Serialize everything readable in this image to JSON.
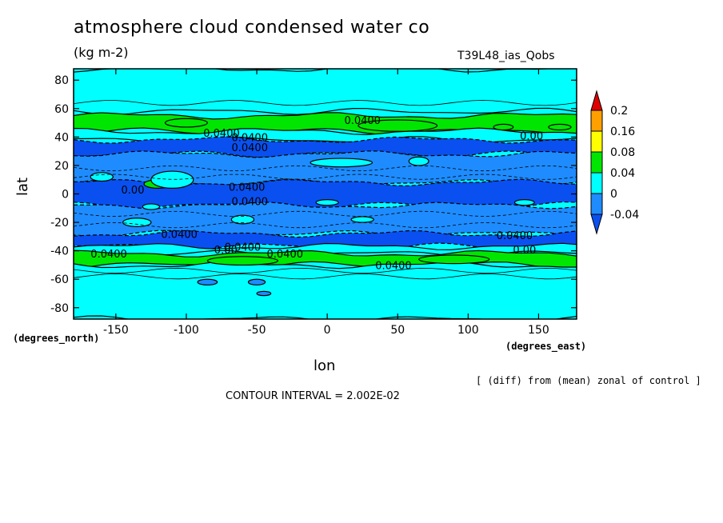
{
  "chart_data": {
    "type": "heatmap",
    "title": "atmosphere cloud condensed water co",
    "units": "(kg m-2)",
    "run_label": "T39L48_ias_Qobs",
    "xlabel": "lon",
    "ylabel": "lat",
    "x_unit_label": "(degrees_east)",
    "y_unit_label": "(degrees_north)",
    "xlim": [
      -180,
      177
    ],
    "ylim": [
      -88,
      88
    ],
    "x_ticks": [
      -150,
      -100,
      -50,
      0,
      50,
      100,
      150
    ],
    "y_ticks": [
      -80,
      -60,
      -40,
      -20,
      0,
      20,
      40,
      60,
      80
    ],
    "note": "[ (diff) from (mean) zonal of control ]",
    "contour_interval": "CONTOUR INTERVAL = 2.002E-02",
    "colorbar": {
      "levels": [
        "0.2",
        "0.16",
        "0.08",
        "0.04",
        "0",
        "-0.04"
      ],
      "colors": [
        "#e00000",
        "#ff9f00",
        "#ffff00",
        "#00e600",
        "#00ffff",
        "#1e8cff",
        "#0a50f0"
      ]
    },
    "zonal_bands": [
      {
        "lat": [
          58,
          88
        ],
        "class": "0 to 0.04",
        "color": "#00ffff"
      },
      {
        "lat": [
          44,
          55
        ],
        "class": "0.04 to 0.08",
        "color": "#00e600"
      },
      {
        "lat": [
          38,
          44
        ],
        "class": "0 to 0.04",
        "color": "#00ffff"
      },
      {
        "lat": [
          28,
          38
        ],
        "class": "below -0.04",
        "color": "#0a50f0"
      },
      {
        "lat": [
          8,
          28
        ],
        "class": "-0.04 to 0",
        "color": "#1e8cff"
      },
      {
        "lat": [
          -8,
          8
        ],
        "class": "below -0.04",
        "color": "#0a50f0"
      },
      {
        "lat": [
          -28,
          -8
        ],
        "class": "-0.04 to 0",
        "color": "#1e8cff"
      },
      {
        "lat": [
          -37,
          -28
        ],
        "class": "below -0.04",
        "color": "#0a50f0"
      },
      {
        "lat": [
          -42,
          -37
        ],
        "class": "0 to 0.04",
        "color": "#00ffff"
      },
      {
        "lat": [
          -50,
          -42
        ],
        "class": "0.04 to 0.08",
        "color": "#00e600"
      },
      {
        "lat": [
          -88,
          -50
        ],
        "class": "0 to 0.04",
        "color": "#00ffff"
      }
    ],
    "contour_labels": [
      {
        "text": "0.0400",
        "lon": 25,
        "lat": 52
      },
      {
        "text": "0.0400",
        "lon": -75,
        "lat": 43
      },
      {
        "text": "0.0400",
        "lon": -55,
        "lat": 40
      },
      {
        "text": "0.0400",
        "lon": -55,
        "lat": 33
      },
      {
        "text": "0.00",
        "lon": 145,
        "lat": 41
      },
      {
        "text": "0.0400",
        "lon": -57,
        "lat": 5
      },
      {
        "text": "0.00",
        "lon": -138,
        "lat": 3
      },
      {
        "text": "0.0400",
        "lon": -55,
        "lat": -5
      },
      {
        "text": "0.0400",
        "lon": -105,
        "lat": -28
      },
      {
        "text": "0.0400",
        "lon": 133,
        "lat": -29
      },
      {
        "text": "0.0400",
        "lon": -60,
        "lat": -37
      },
      {
        "text": "0.00",
        "lon": -72,
        "lat": -39
      },
      {
        "text": "0.00",
        "lon": 140,
        "lat": -39
      },
      {
        "text": "0.0400",
        "lon": -155,
        "lat": -42
      },
      {
        "text": "0.0400",
        "lon": -30,
        "lat": -42
      },
      {
        "text": "0.0400",
        "lon": 47,
        "lat": -50
      }
    ],
    "patches": [
      {
        "lon": 10,
        "lat": 22,
        "rlon": 22,
        "rlat": 3,
        "color": "#00ffff"
      },
      {
        "lon": 65,
        "lat": 23,
        "rlon": 7,
        "rlat": 3,
        "color": "#00ffff"
      },
      {
        "lon": -120,
        "lat": 7,
        "rlon": 10,
        "rlat": 3,
        "color": "#00e600"
      },
      {
        "lon": -110,
        "lat": 10,
        "rlon": 15,
        "rlat": 6,
        "color": "#00ffff"
      },
      {
        "lon": -160,
        "lat": 12,
        "rlon": 8,
        "rlat": 3,
        "color": "#00ffff"
      },
      {
        "lon": -125,
        "lat": -9,
        "rlon": 6,
        "rlat": 2,
        "color": "#00ffff"
      },
      {
        "lon": 0,
        "lat": -6,
        "rlon": 8,
        "rlat": 2,
        "color": "#00ffff"
      },
      {
        "lon": 140,
        "lat": -6,
        "rlon": 7,
        "rlat": 2,
        "color": "#00ffff"
      },
      {
        "lon": -135,
        "lat": -20,
        "rlon": 10,
        "rlat": 3,
        "color": "#00ffff"
      },
      {
        "lon": -60,
        "lat": -18,
        "rlon": 8,
        "rlat": 3,
        "color": "#00ffff"
      },
      {
        "lon": 25,
        "lat": -18,
        "rlon": 8,
        "rlat": 2,
        "color": "#00ffff"
      },
      {
        "lon": -85,
        "lat": -62,
        "rlon": 7,
        "rlat": 2,
        "color": "#1e8cff"
      },
      {
        "lon": -50,
        "lat": -62,
        "rlon": 6,
        "rlat": 2,
        "color": "#1e8cff"
      },
      {
        "lon": -45,
        "lat": -70,
        "rlon": 5,
        "rlat": 1.5,
        "color": "#1e8cff"
      },
      {
        "lon": 125,
        "lat": 47,
        "rlon": 7,
        "rlat": 2,
        "color": "#00e600"
      },
      {
        "lon": 165,
        "lat": 47,
        "rlon": 8,
        "rlat": 2,
        "color": "#00e600"
      },
      {
        "lon": 50,
        "lat": 48,
        "rlon": 28,
        "rlat": 4,
        "color": "#00e600"
      },
      {
        "lon": -100,
        "lat": 50,
        "rlon": 15,
        "rlat": 3,
        "color": "#00e600"
      },
      {
        "lon": -60,
        "lat": -47,
        "rlon": 25,
        "rlat": 3,
        "color": "#00e600"
      },
      {
        "lon": 90,
        "lat": -46,
        "rlon": 25,
        "rlat": 3,
        "color": "#00e600"
      }
    ]
  }
}
